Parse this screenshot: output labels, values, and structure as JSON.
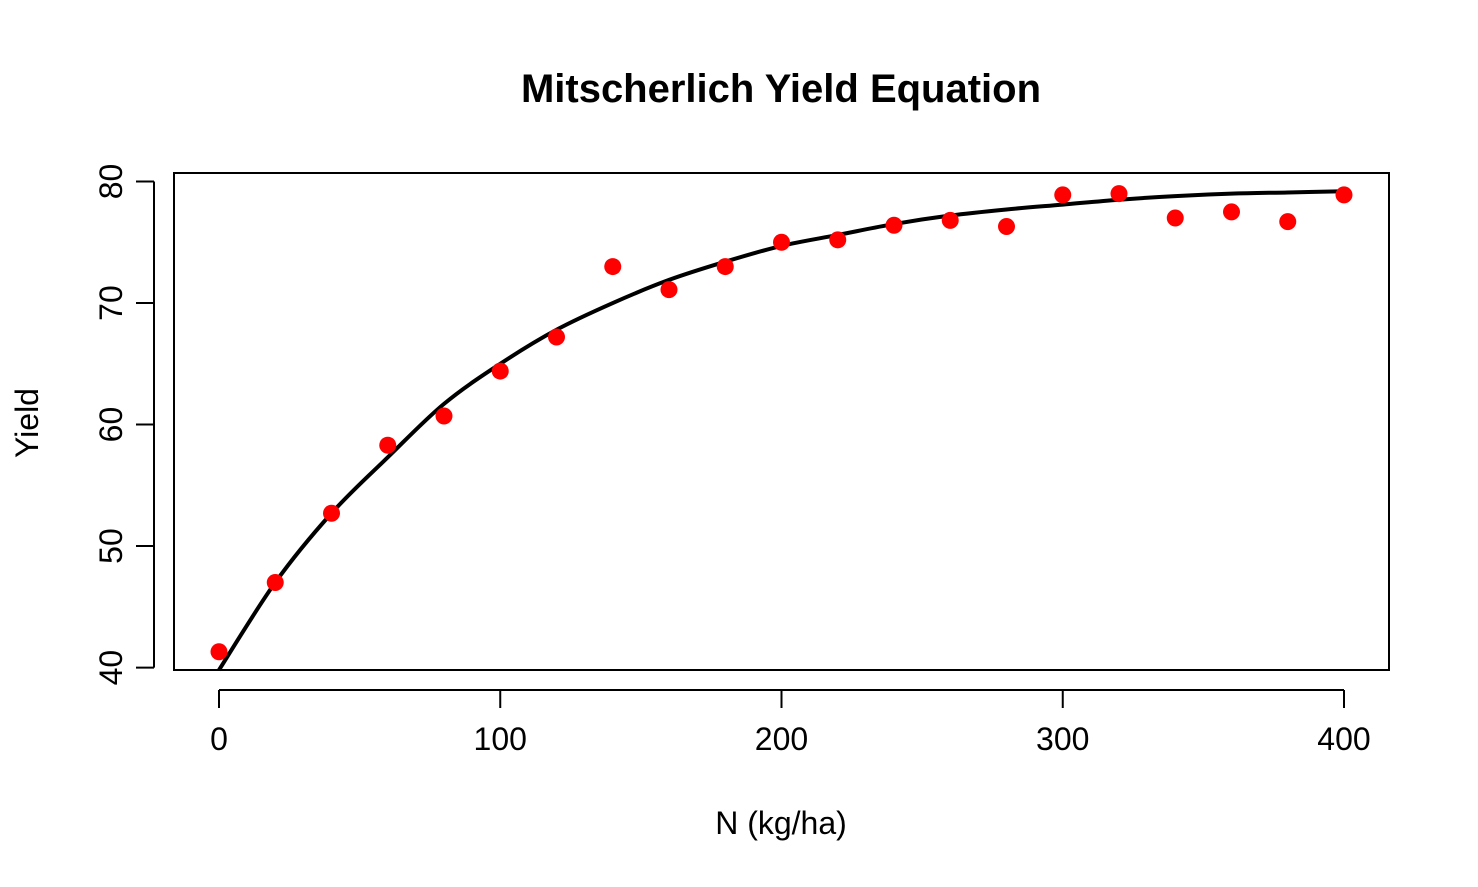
{
  "chart_data": {
    "type": "scatter",
    "title": "Mitscherlich Yield Equation",
    "xlabel": "N (kg/ha)",
    "ylabel": "Yield",
    "xlim": [
      -16,
      416
    ],
    "ylim": [
      39.8,
      80.7
    ],
    "xticks": [
      0,
      100,
      200,
      300,
      400
    ],
    "yticks": [
      40,
      50,
      60,
      70,
      80
    ],
    "grid": false,
    "legend": "none",
    "series": [
      {
        "kind": "points",
        "color": "#ff0000",
        "x": [
          0,
          20,
          40,
          60,
          80,
          100,
          120,
          140,
          160,
          180,
          200,
          220,
          240,
          260,
          280,
          300,
          320,
          340,
          360,
          380,
          400
        ],
        "y": [
          41.3,
          47.0,
          52.7,
          58.3,
          60.7,
          64.4,
          67.2,
          73.0,
          71.1,
          73.0,
          75.0,
          75.2,
          76.4,
          76.8,
          76.3,
          78.9,
          79.0,
          77.0,
          77.5,
          76.7,
          78.9
        ]
      },
      {
        "kind": "line",
        "color": "#000000",
        "x": [
          0,
          20,
          40,
          60,
          80,
          100,
          120,
          140,
          160,
          180,
          200,
          220,
          240,
          260,
          280,
          300,
          320,
          340,
          360,
          380,
          400
        ],
        "y": [
          39.8,
          47.0,
          52.7,
          57.3,
          61.7,
          65.0,
          67.8,
          70.0,
          71.9,
          73.4,
          74.7,
          75.6,
          76.5,
          77.2,
          77.7,
          78.1,
          78.5,
          78.8,
          79.0,
          79.1,
          79.2
        ]
      }
    ]
  }
}
